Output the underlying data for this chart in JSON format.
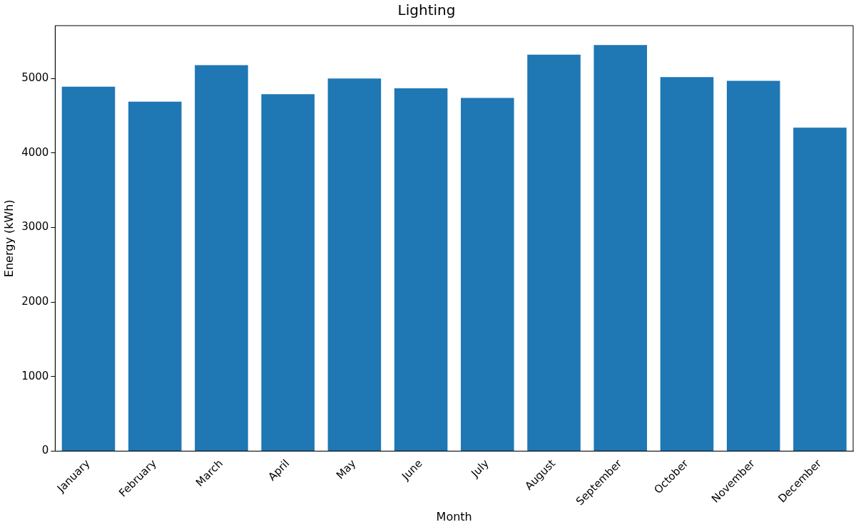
{
  "chart_data": {
    "type": "bar",
    "title": "Lighting",
    "xlabel": "Month",
    "ylabel": "Energy (kWh)",
    "categories": [
      "January",
      "February",
      "March",
      "April",
      "May",
      "June",
      "July",
      "August",
      "September",
      "October",
      "November",
      "December"
    ],
    "values": [
      4890,
      4690,
      5180,
      4790,
      5000,
      4870,
      4740,
      5320,
      5450,
      5020,
      4970,
      4340
    ],
    "color": "#1f77b4",
    "ylim": [
      0,
      5710
    ],
    "yticks": [
      0,
      1000,
      2000,
      3000,
      4000,
      5000
    ],
    "grid": false,
    "legend": false
  }
}
